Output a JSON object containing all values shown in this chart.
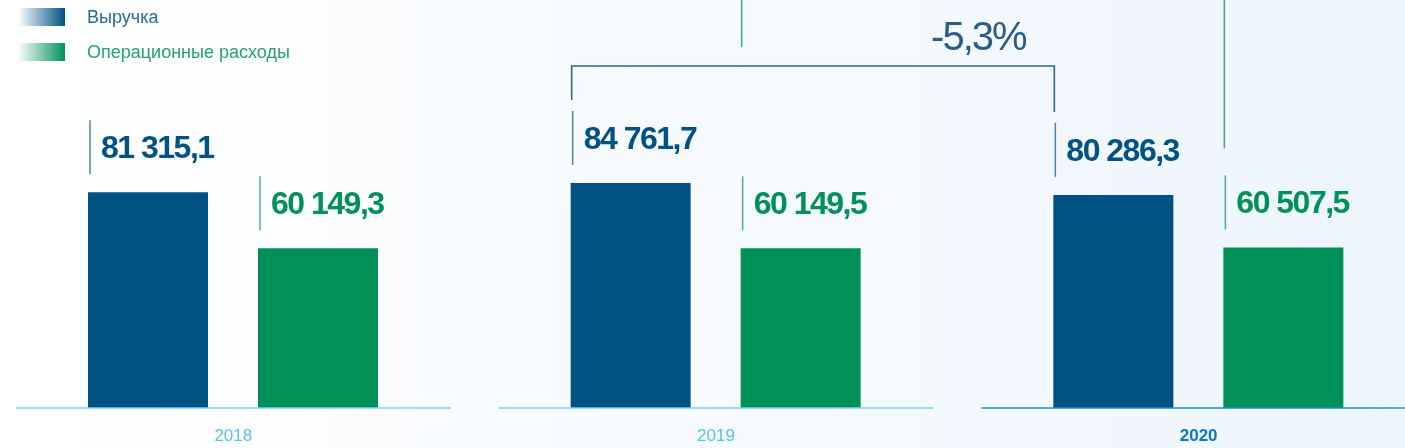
{
  "chart_data": {
    "type": "bar",
    "categories": [
      "2018",
      "2019",
      "2020"
    ],
    "series": [
      {
        "name": "Выручка",
        "color": "#005283",
        "values": [
          81315.1,
          84761.7,
          80286.3
        ],
        "value_labels": [
          "81 315,1",
          "84 761,7",
          "80 286,3"
        ]
      },
      {
        "name": "Операционные расходы",
        "color": "#009158",
        "values": [
          60149.3,
          60149.5,
          60507.5
        ],
        "value_labels": [
          "60 149,3",
          "60 149,5",
          "60 507,5"
        ]
      }
    ],
    "annotations": [
      "-5,3%"
    ],
    "legend": "top left"
  }
}
